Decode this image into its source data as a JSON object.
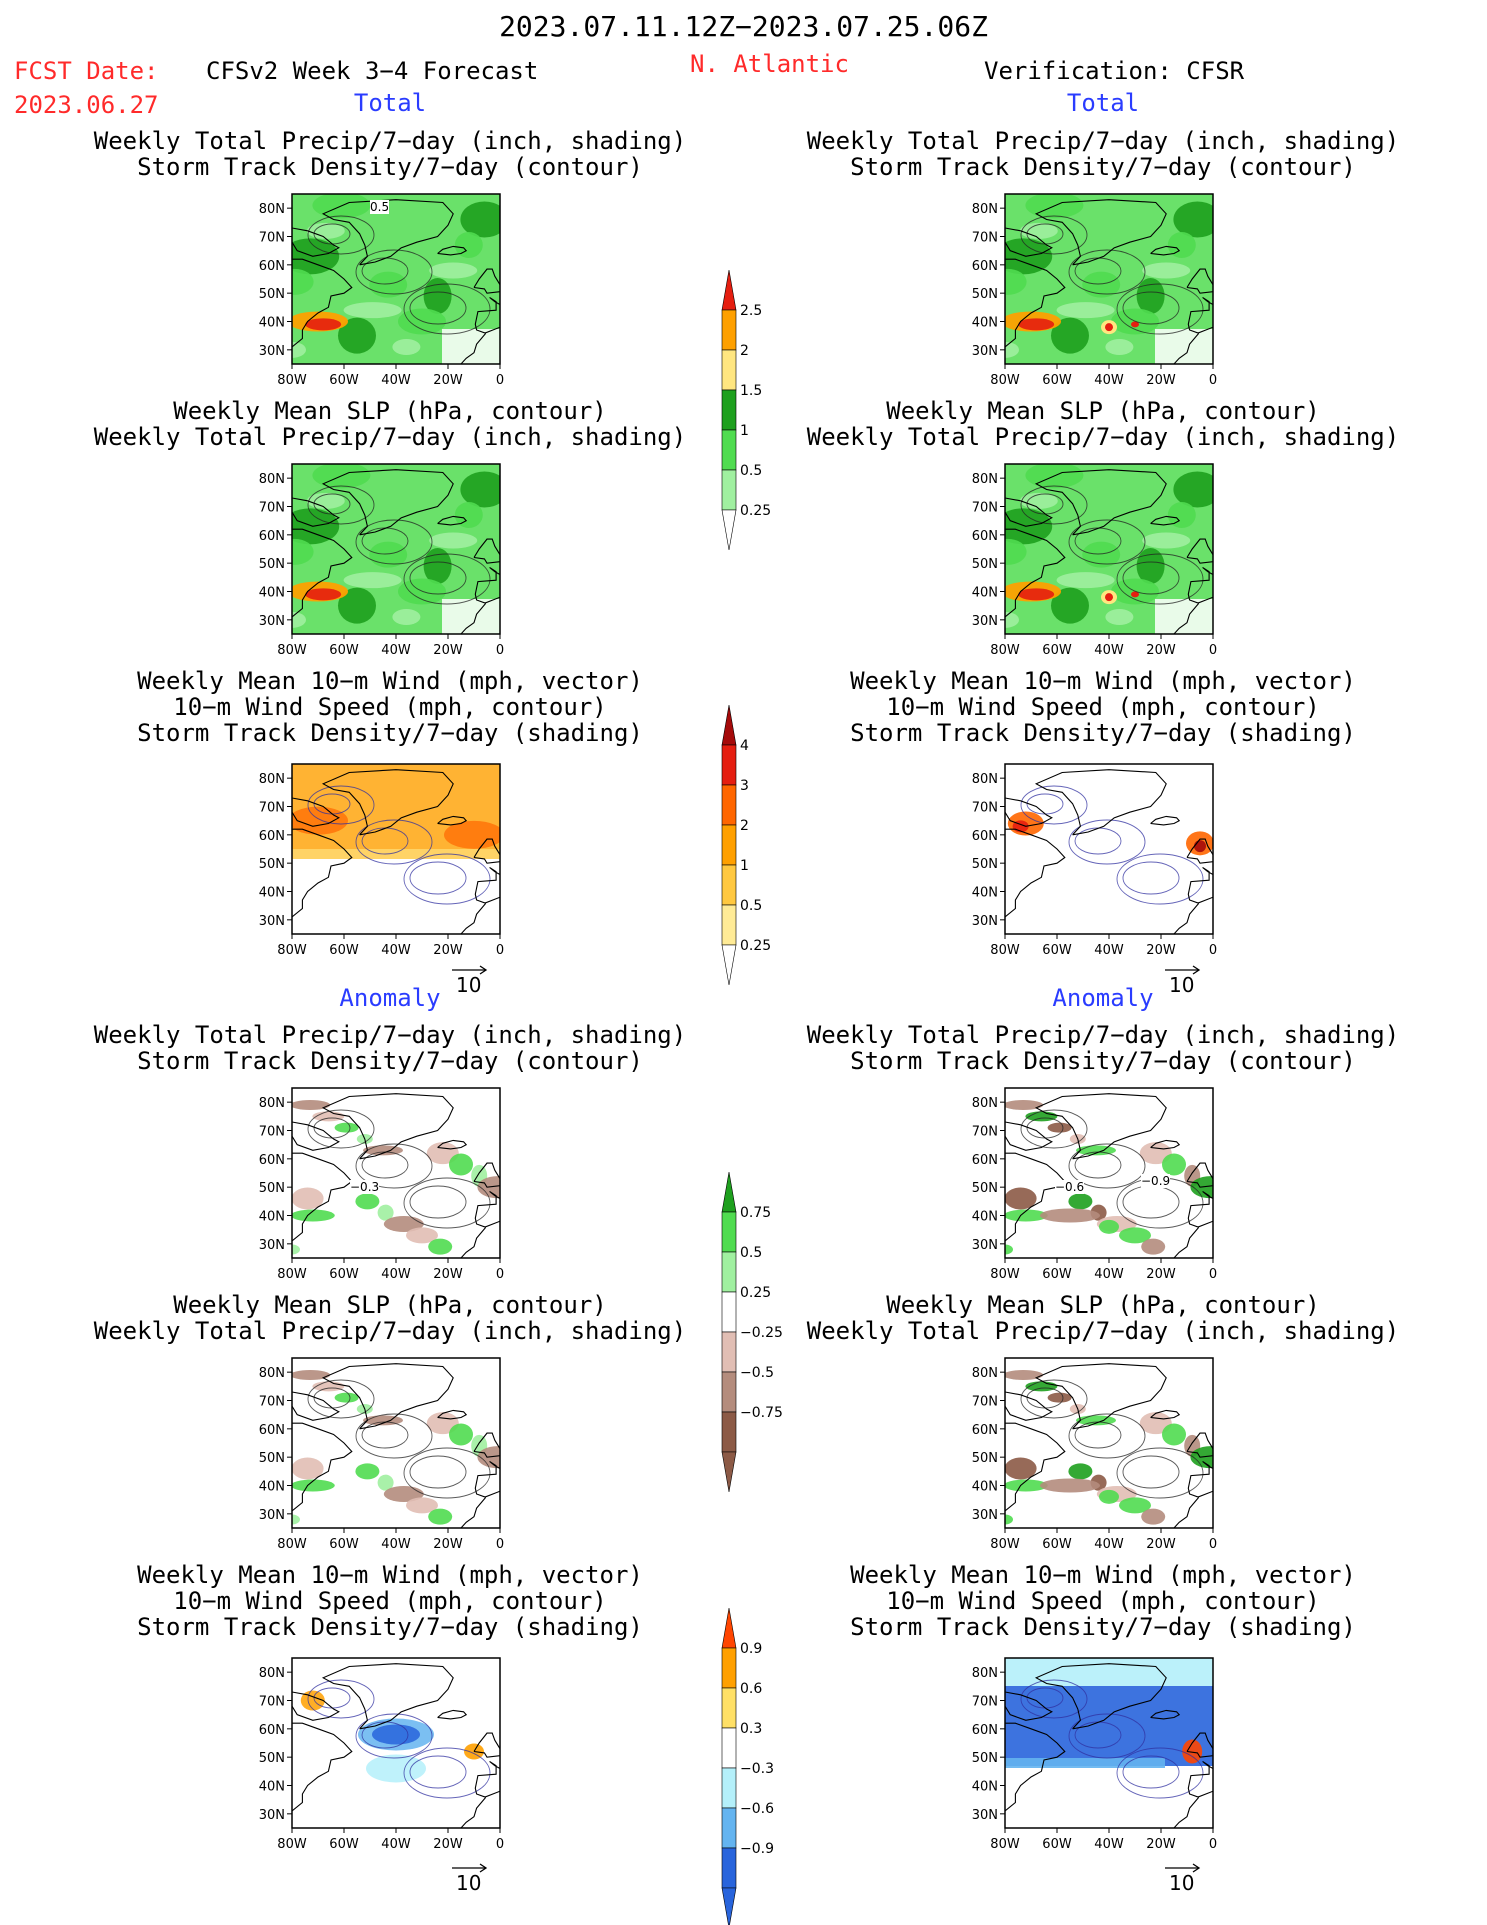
{
  "header": {
    "period": "2023.07.11.12Z−2023.07.25.06Z",
    "region": "N. Atlantic",
    "fcst_label": "FCST Date:",
    "fcst_date": "2023.06.27",
    "model": "CFSv2 Week 3−4 Forecast",
    "verification": "Verification: CFSR"
  },
  "sections": {
    "total": "Total",
    "anomaly": "Anomaly"
  },
  "titles": {
    "precip_shading": "Weekly Total Precip/7−day (inch, shading)",
    "storm_contour": "Storm Track Density/7−day (contour)",
    "slp_contour": "Weekly Mean SLP (hPa, contour)",
    "wind_vector": "Weekly Mean 10−m Wind (mph, vector)",
    "wind_speed": "10−m Wind Speed (mph, contour)",
    "storm_shading": "Storm Track Density/7−day (shading)"
  },
  "axes": {
    "lat_ticks": [
      "80N",
      "70N",
      "60N",
      "50N",
      "40N",
      "30N"
    ],
    "lon_ticks": [
      "80W",
      "60W",
      "40W",
      "20W",
      "0"
    ]
  },
  "vector_ref": "10",
  "colorbars": {
    "precip_total": {
      "labels": [
        "2.5",
        "2",
        "1.5",
        "1",
        "0.5",
        "0.25"
      ],
      "colors": [
        "#e51e10",
        "#fea000",
        "#ffe680",
        "#1ea01e",
        "#50dc50",
        "#a0f0a0"
      ]
    },
    "storm_total": {
      "labels": [
        "4",
        "3",
        "2",
        "1",
        "0.5",
        "0.25"
      ],
      "colors": [
        "#a50a0a",
        "#e51e10",
        "#ff6600",
        "#ffa000",
        "#ffc840",
        "#ffeb96"
      ]
    },
    "precip_anom": {
      "labels": [
        "0.75",
        "0.5",
        "0.25",
        "−0.25",
        "−0.5",
        "−0.75"
      ],
      "colors": [
        "#1ea01e",
        "#50dc50",
        "#a0f0a0",
        "#ffffff",
        "#e1beb4",
        "#b48c7d",
        "#8c5a46"
      ]
    },
    "storm_anom": {
      "labels": [
        "0.9",
        "0.6",
        "0.3",
        "−0.3",
        "−0.6",
        "−0.9"
      ],
      "colors": [
        "#ff4500",
        "#ffa000",
        "#ffe066",
        "#ffffff",
        "#b4f0fa",
        "#64b4f0",
        "#2864dc"
      ]
    }
  },
  "contour_labels": {
    "precip_total_fcst": "0.5",
    "precip_anom_fcst": "−0.3",
    "precip_anom_verif_a": "−0.6",
    "precip_anom_verif_b": "−0.9"
  },
  "chart_data": [
    {
      "type": "heatmap",
      "panel": "forecast-total-precip",
      "title": "Weekly Total Precip/7−day (inch, shading) / Storm Track Density/7−day (contour)",
      "xlim": [
        -80,
        0
      ],
      "ylim": [
        25,
        85
      ]
    },
    {
      "type": "heatmap",
      "panel": "verification-total-precip",
      "title": "Weekly Total Precip/7−day (inch, shading) / Storm Track Density/7−day (contour)",
      "xlim": [
        -80,
        0
      ],
      "ylim": [
        25,
        85
      ]
    },
    {
      "type": "heatmap",
      "panel": "forecast-total-slp",
      "title": "Weekly Mean SLP (hPa, contour) / Weekly Total Precip/7−day (inch, shading)",
      "xlim": [
        -80,
        0
      ],
      "ylim": [
        25,
        85
      ]
    },
    {
      "type": "heatmap",
      "panel": "verification-total-slp",
      "title": "Weekly Mean SLP (hPa, contour) / Weekly Total Precip/7−day (inch, shading)",
      "xlim": [
        -80,
        0
      ],
      "ylim": [
        25,
        85
      ]
    },
    {
      "type": "heatmap",
      "panel": "forecast-total-wind",
      "title": "Weekly Mean 10−m Wind (mph, vector) / 10−m Wind Speed (mph, contour) / Storm Track Density/7−day (shading)",
      "xlim": [
        -80,
        0
      ],
      "ylim": [
        25,
        85
      ]
    },
    {
      "type": "heatmap",
      "panel": "verification-total-wind",
      "title": "Weekly Mean 10−m Wind (mph, vector) / 10−m Wind Speed (mph, contour) / Storm Track Density/7−day (shading)",
      "xlim": [
        -80,
        0
      ],
      "ylim": [
        25,
        85
      ]
    },
    {
      "type": "heatmap",
      "panel": "forecast-anom-precip",
      "title": "Weekly Total Precip/7−day (inch, shading) / Storm Track Density/7−day (contour)",
      "xlim": [
        -80,
        0
      ],
      "ylim": [
        25,
        85
      ]
    },
    {
      "type": "heatmap",
      "panel": "verification-anom-precip",
      "title": "Weekly Total Precip/7−day (inch, shading) / Storm Track Density/7−day (contour)",
      "xlim": [
        -80,
        0
      ],
      "ylim": [
        25,
        85
      ]
    },
    {
      "type": "heatmap",
      "panel": "forecast-anom-slp",
      "title": "Weekly Mean SLP (hPa, contour) / Weekly Total Precip/7−day (inch, shading)",
      "xlim": [
        -80,
        0
      ],
      "ylim": [
        25,
        85
      ]
    },
    {
      "type": "heatmap",
      "panel": "verification-anom-slp",
      "title": "Weekly Mean SLP (hPa, contour) / Weekly Total Precip/7−day (inch, shading)",
      "xlim": [
        -80,
        0
      ],
      "ylim": [
        25,
        85
      ]
    },
    {
      "type": "heatmap",
      "panel": "forecast-anom-wind",
      "title": "Weekly Mean 10−m Wind (mph, vector) / 10−m Wind Speed (mph, contour) / Storm Track Density/7−day (shading)",
      "xlim": [
        -80,
        0
      ],
      "ylim": [
        25,
        85
      ]
    },
    {
      "type": "heatmap",
      "panel": "verification-anom-wind",
      "title": "Weekly Mean 10−m Wind (mph, vector) / 10−m Wind Speed (mph, contour) / Storm Track Density/7−day (shading)",
      "xlim": [
        -80,
        0
      ],
      "ylim": [
        25,
        85
      ]
    }
  ]
}
